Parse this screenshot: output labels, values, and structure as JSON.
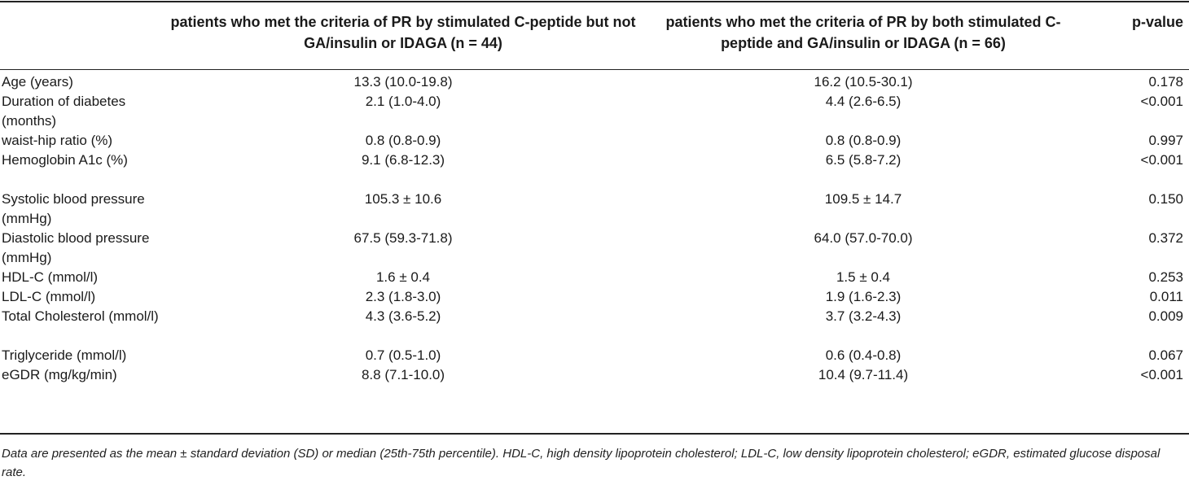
{
  "header": {
    "col1": "patients who met the criteria of PR by stimulated C-peptide but not GA/insulin or IDAGA (n = 44)",
    "col2": "patients who met the criteria of PR by both stimulated C-peptide and GA/insulin or IDAGA (n = 66)",
    "col3": "p-value"
  },
  "rows": [
    {
      "label": "Age (years)",
      "v1": "13.3 (10.0-19.8)",
      "v2": "16.2 (10.5-30.1)",
      "p": "0.178"
    },
    {
      "label": "Duration of diabetes (months)",
      "v1": "2.1 (1.0-4.0)",
      "v2": "4.4 (2.6-6.5)",
      "p": "<0.001"
    },
    {
      "label": "waist-hip ratio (%)",
      "v1": "0.8 (0.8-0.9)",
      "v2": "0.8 (0.8-0.9)",
      "p": "0.997"
    },
    {
      "label": "Hemoglobin A1c (%)",
      "v1": "9.1 (6.8-12.3)",
      "v2": "6.5 (5.8-7.2)",
      "p": "<0.001"
    },
    {
      "label": "Systolic blood pressure (mmHg)",
      "v1": "105.3 ± 10.6",
      "v2": "109.5 ± 14.7",
      "p": "0.150"
    },
    {
      "label": "Diastolic blood pressure (mmHg)",
      "v1": "67.5 (59.3-71.8)",
      "v2": "64.0 (57.0-70.0)",
      "p": "0.372"
    },
    {
      "label": "HDL-C (mmol/l)",
      "v1": "1.6 ± 0.4",
      "v2": "1.5 ± 0.4",
      "p": "0.253"
    },
    {
      "label": "LDL-C (mmol/l)",
      "v1": "2.3 (1.8-3.0)",
      "v2": "1.9 (1.6-2.3)",
      "p": "0.011"
    },
    {
      "label": "Total Cholesterol (mmol/l)",
      "v1": "4.3 (3.6-5.2)",
      "v2": "3.7 (3.2-4.3)",
      "p": "0.009"
    },
    {
      "label": "Triglyceride (mmol/l)",
      "v1": "0.7 (0.5-1.0)",
      "v2": "0.6 (0.4-0.8)",
      "p": "0.067"
    },
    {
      "label": "eGDR (mg/kg/min)",
      "v1": "8.8 (7.1-10.0)",
      "v2": "10.4 (9.7-11.4)",
      "p": "<0.001"
    }
  ],
  "footnote": "Data are presented as the mean ± standard deviation (SD) or median (25th-75th percentile). HDL-C, high density lipoprotein cholesterol; LDL-C, low density lipoprotein cholesterol; eGDR, estimated glucose disposal rate."
}
